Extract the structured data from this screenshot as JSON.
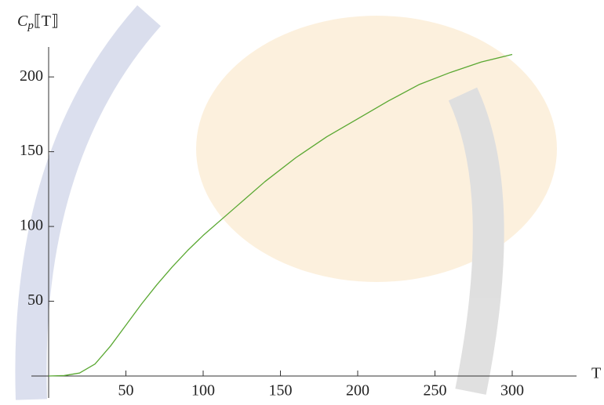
{
  "chart_data": {
    "type": "line",
    "y_label": {
      "main": "C",
      "sub": "p",
      "arg": "⟦T⟧"
    },
    "x_label": "T",
    "x": [
      0,
      10,
      20,
      30,
      40,
      50,
      60,
      70,
      80,
      90,
      100,
      120,
      140,
      160,
      180,
      200,
      220,
      240,
      260,
      280,
      300
    ],
    "values": [
      0,
      0.3,
      2,
      8,
      20,
      34,
      48,
      61,
      73,
      84,
      94,
      112,
      130,
      146,
      160,
      172,
      184,
      195,
      203,
      210,
      215
    ],
    "color": "#5aa832",
    "xlim": [
      0,
      300
    ],
    "ylim": [
      0,
      220
    ],
    "xticks": [
      50,
      100,
      150,
      200,
      250,
      300
    ],
    "yticks": [
      50,
      100,
      150,
      200
    ]
  }
}
